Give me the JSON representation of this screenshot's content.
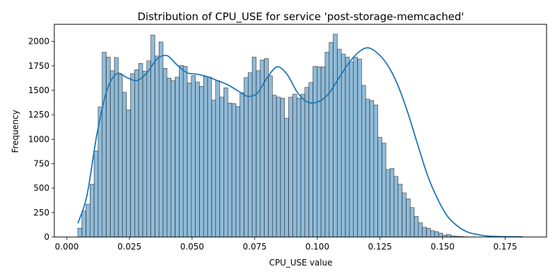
{
  "chart_data": {
    "type": "bar",
    "title": "Distribution of CPU_USE for service 'post-storage-memcached'",
    "xlabel": "CPU_USE value",
    "ylabel": "Frequency",
    "xlim": [
      -0.005,
      0.1915
    ],
    "ylim": [
      0,
      2175
    ],
    "xticks": [
      0.0,
      0.025,
      0.05,
      0.075,
      0.1,
      0.125,
      0.15,
      0.175
    ],
    "xtick_labels": [
      "0.000",
      "0.025",
      "0.050",
      "0.075",
      "0.100",
      "0.125",
      "0.150",
      "0.175"
    ],
    "yticks": [
      0,
      250,
      500,
      750,
      1000,
      1250,
      1500,
      1750,
      2000
    ],
    "ytick_labels": [
      "0",
      "250",
      "500",
      "750",
      "1000",
      "1250",
      "1500",
      "1750",
      "2000"
    ],
    "grid": false,
    "bin_start": 0.0044,
    "bin_width": 0.001618,
    "values": [
      90,
      265,
      335,
      540,
      880,
      1330,
      1890,
      1840,
      1700,
      1835,
      1660,
      1480,
      1300,
      1670,
      1710,
      1775,
      1695,
      1800,
      2065,
      1850,
      1995,
      1725,
      1625,
      1600,
      1635,
      1755,
      1745,
      1575,
      1650,
      1585,
      1540,
      1640,
      1635,
      1400,
      1600,
      1430,
      1525,
      1370,
      1365,
      1335,
      1475,
      1630,
      1680,
      1840,
      1700,
      1810,
      1825,
      1650,
      1450,
      1430,
      1420,
      1215,
      1430,
      1460,
      1420,
      1460,
      1530,
      1580,
      1745,
      1740,
      1740,
      1890,
      1990,
      2075,
      1920,
      1870,
      1840,
      1790,
      1840,
      1820,
      1550,
      1410,
      1395,
      1350,
      1020,
      960,
      690,
      700,
      620,
      540,
      450,
      390,
      300,
      210,
      145,
      100,
      90,
      65,
      55,
      40,
      20,
      25,
      12,
      8,
      5,
      3,
      2,
      1,
      1,
      1,
      1,
      0,
      1,
      0,
      0,
      0,
      0,
      1
    ],
    "kde": {
      "x": [
        0.0044,
        0.008,
        0.012,
        0.016,
        0.02,
        0.024,
        0.028,
        0.032,
        0.036,
        0.04,
        0.044,
        0.048,
        0.052,
        0.056,
        0.06,
        0.064,
        0.068,
        0.072,
        0.076,
        0.08,
        0.084,
        0.088,
        0.092,
        0.096,
        0.1,
        0.104,
        0.108,
        0.112,
        0.116,
        0.12,
        0.124,
        0.128,
        0.132,
        0.136,
        0.14,
        0.144,
        0.148,
        0.152,
        0.156,
        0.16,
        0.164,
        0.168,
        0.172,
        0.176,
        0.182
      ],
      "y": [
        140,
        420,
        1050,
        1500,
        1670,
        1630,
        1600,
        1680,
        1820,
        1855,
        1760,
        1680,
        1665,
        1640,
        1600,
        1560,
        1500,
        1440,
        1470,
        1630,
        1740,
        1660,
        1480,
        1380,
        1380,
        1450,
        1600,
        1760,
        1880,
        1935,
        1880,
        1760,
        1560,
        1280,
        950,
        630,
        390,
        210,
        110,
        50,
        25,
        10,
        5,
        3,
        2
      ]
    }
  }
}
